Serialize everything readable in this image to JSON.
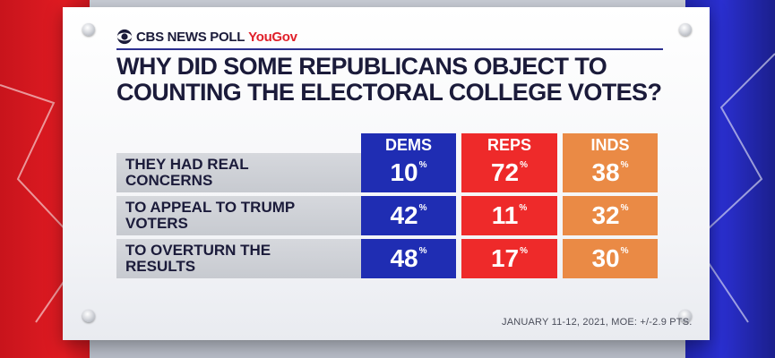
{
  "brand": {
    "network": "CBS NEWS POLL",
    "partner": "YouGov"
  },
  "title_lines": [
    "WHY DID SOME REPUBLICANS OBJECT TO",
    "COUNTING THE ELECTORAL COLLEGE VOTES?"
  ],
  "colors": {
    "dems": "#1f2db3",
    "reps": "#ee2a2a",
    "inds": "#ea8a45"
  },
  "chart_data": {
    "type": "table",
    "title": "WHY DID SOME REPUBLICANS OBJECT TO COUNTING THE ELECTORAL COLLEGE VOTES?",
    "columns": [
      "DEMS",
      "REPS",
      "INDS"
    ],
    "rows": [
      {
        "label_lines": [
          "THEY HAD REAL",
          "CONCERNS"
        ],
        "values": [
          10,
          72,
          38
        ]
      },
      {
        "label_lines": [
          "TO APPEAL TO TRUMP",
          "VOTERS"
        ],
        "values": [
          42,
          11,
          32
        ]
      },
      {
        "label_lines": [
          "TO OVERTURN THE",
          "RESULTS"
        ],
        "values": [
          48,
          17,
          30
        ]
      }
    ],
    "unit_symbol": "%"
  },
  "footnote": "JANUARY 11-12, 2021, MOE: +/-2.9 PTS."
}
